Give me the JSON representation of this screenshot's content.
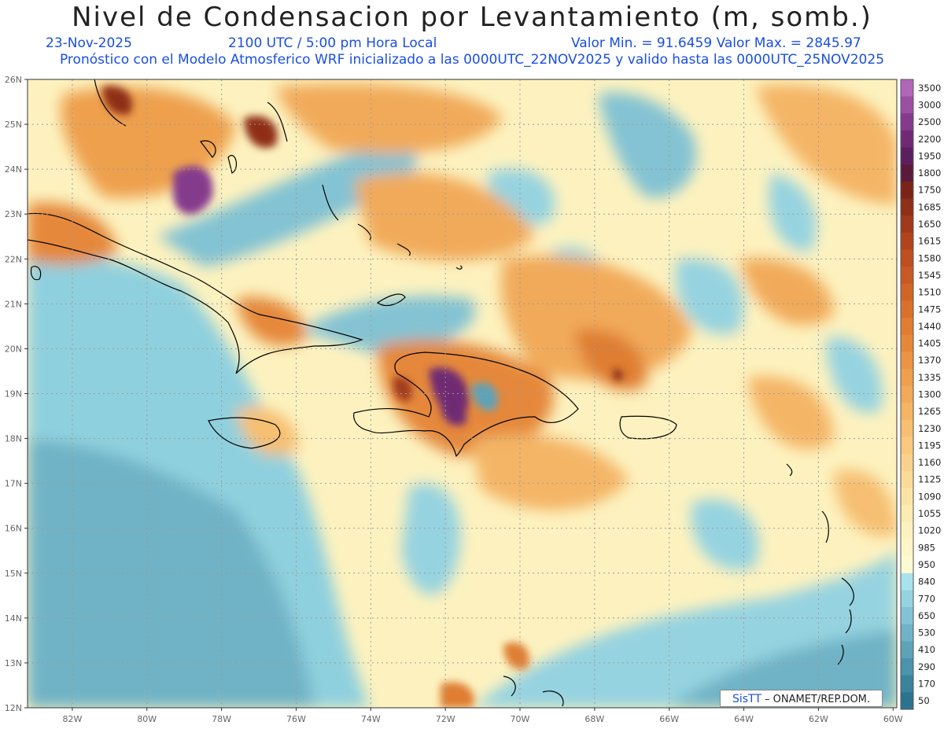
{
  "title": "Nivel de Condensacion por Levantamiento (m, somb.)",
  "date": "23-Nov-2025",
  "time": "2100 UTC / 5:00 pm Hora Local",
  "minmax": "Valor Min. = 91.6459   Valor Max. = 2845.97",
  "model": "Pronóstico con el Modelo Atmosferico WRF inicializado a las 0000UTC_22NOV2025 y valido hasta las  0000UTC_25NOV2025",
  "credit": {
    "sis": "SisTT",
    "org": "– ONAMET/REP.DOM."
  },
  "lat_labels": [
    "26N",
    "25N",
    "24N",
    "23N",
    "22N",
    "21N",
    "20N",
    "19N",
    "18N",
    "17N",
    "16N",
    "15N",
    "14N",
    "13N",
    "12N"
  ],
  "lon_labels": [
    "82W",
    "80W",
    "78W",
    "76W",
    "74W",
    "72W",
    "70W",
    "68W",
    "66W",
    "64W",
    "62W",
    "60W"
  ],
  "colorbar": {
    "labels": [
      "3500",
      "3000",
      "2500",
      "2200",
      "1950",
      "1800",
      "1750",
      "1685",
      "1650",
      "1615",
      "1580",
      "1545",
      "1510",
      "1475",
      "1440",
      "1405",
      "1370",
      "1335",
      "1300",
      "1265",
      "1230",
      "1195",
      "1160",
      "1125",
      "1090",
      "1055",
      "1020",
      "985",
      "950",
      "840",
      "770",
      "650",
      "530",
      "410",
      "290",
      "170",
      "50"
    ],
    "colors": [
      "#b266b8",
      "#9a4fa3",
      "#853a8c",
      "#6f2a73",
      "#5c1f5e",
      "#5a1a3c",
      "#7a2418",
      "#8e2f17",
      "#a03a1a",
      "#b0441c",
      "#bd4f20",
      "#c75a24",
      "#d06528",
      "#d8712c",
      "#df7d32",
      "#e5883a",
      "#ea9444",
      "#eea04e",
      "#f1aa5a",
      "#f4b566",
      "#f6bf72",
      "#f8c97e",
      "#f9d28b",
      "#fadb98",
      "#fbe3a5",
      "#fcebb2",
      "#fdf2bf",
      "#fdf6c8",
      "#fefad2",
      "#a9e2ec",
      "#96d3e0",
      "#83c3d3",
      "#70b3c6",
      "#5ea3b9",
      "#4c93ab",
      "#3b839d",
      "#2b738f"
    ]
  },
  "map": {
    "lat_range": [
      12,
      26
    ],
    "lon_range": [
      -83.2,
      -59.9
    ],
    "grid": true
  }
}
